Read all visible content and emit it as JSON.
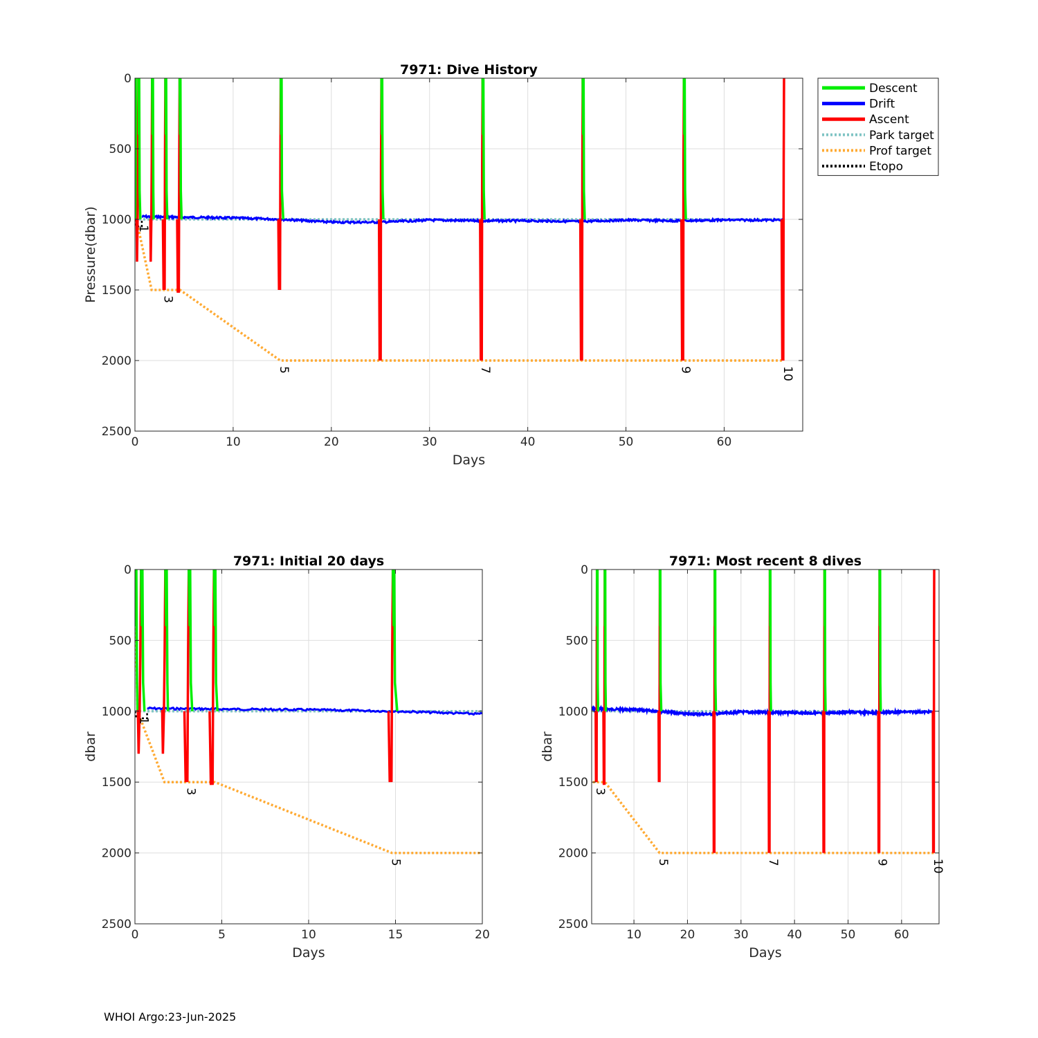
{
  "footer": "WHOI Argo:23-Jun-2025",
  "legend": [
    {
      "label": "Descent",
      "color": "#00ee00",
      "style": "solid"
    },
    {
      "label": "Drift",
      "color": "#0000ff",
      "style": "solid"
    },
    {
      "label": "Ascent",
      "color": "#ff0000",
      "style": "solid"
    },
    {
      "label": "Park target",
      "color": "#7fc4c4",
      "style": "dotted"
    },
    {
      "label": "Prof target",
      "color": "#ffaa33",
      "style": "dotted"
    },
    {
      "label": "Etopo",
      "color": "#000000",
      "style": "dotted"
    }
  ],
  "chart_data": [
    {
      "type": "line",
      "title": "7971: Dive History",
      "xlabel": "Days",
      "ylabel": "Pressure(dbar)",
      "xlim": [
        0,
        68
      ],
      "ylim": [
        0,
        2500
      ],
      "y_reversed": true,
      "grid": true,
      "xticks": [
        0,
        10,
        20,
        30,
        40,
        50,
        60
      ],
      "yticks": [
        0,
        500,
        1000,
        1500,
        2000,
        2500
      ],
      "legend_position": "outside-right",
      "cycle_labels": [
        {
          "label": "1",
          "x": 0.5,
          "y": 1040
        },
        {
          "label": "3",
          "x": 3.0,
          "y": 1540
        },
        {
          "label": "5",
          "x": 14.8,
          "y": 2040
        },
        {
          "label": "7",
          "x": 35.3,
          "y": 2040
        },
        {
          "label": "9",
          "x": 55.7,
          "y": 2040
        },
        {
          "label": "10",
          "x": 66.1,
          "y": 2040
        }
      ]
    },
    {
      "type": "line",
      "title": "7971: Initial 20 days",
      "xlabel": "Days",
      "ylabel": "dbar",
      "xlim": [
        0,
        20
      ],
      "ylim": [
        0,
        2500
      ],
      "y_reversed": true,
      "grid": true,
      "xticks": [
        0,
        5,
        10,
        15,
        20
      ],
      "yticks": [
        0,
        500,
        1000,
        1500,
        2000,
        2500
      ],
      "cycle_labels": [
        {
          "label": "1",
          "x": 0.3,
          "y": 1040
        },
        {
          "label": "3",
          "x": 3.0,
          "y": 1540
        },
        {
          "label": "5",
          "x": 14.8,
          "y": 2040
        }
      ]
    },
    {
      "type": "line",
      "title": "7971: Most recent 8 dives",
      "xlabel": "Days",
      "ylabel": "dbar",
      "xlim": [
        2.1,
        67
      ],
      "ylim": [
        0,
        2500
      ],
      "y_reversed": true,
      "grid": true,
      "xticks": [
        10,
        20,
        30,
        40,
        50,
        60
      ],
      "yticks": [
        0,
        500,
        1000,
        1500,
        2000,
        2500
      ],
      "cycle_labels": [
        {
          "label": "3",
          "x": 3.0,
          "y": 1540
        },
        {
          "label": "5",
          "x": 14.8,
          "y": 2040
        },
        {
          "label": "7",
          "x": 35.3,
          "y": 2040
        },
        {
          "label": "9",
          "x": 55.7,
          "y": 2040
        },
        {
          "label": "10",
          "x": 66.1,
          "y": 2040
        }
      ]
    }
  ],
  "series_data": {
    "prof_target": [
      [
        0,
        150
      ],
      [
        0.15,
        1000
      ],
      [
        1.7,
        1500
      ],
      [
        4.6,
        1500
      ],
      [
        14.8,
        2000
      ],
      [
        66.1,
        2000
      ]
    ],
    "park_target": [
      [
        0,
        1000
      ],
      [
        66.1,
        1000
      ]
    ],
    "etopo": [
      [
        0,
        1000
      ],
      [
        0.1,
        1050
      ],
      [
        0.7,
        1050
      ],
      [
        0.7,
        1000
      ]
    ],
    "cycles": [
      {
        "t_start": 0.0,
        "t_bottom": 0.15,
        "profile_depth": 1000,
        "t_surface": 0.35
      },
      {
        "t_start": 0.35,
        "t_bottom": 0.55,
        "profile_depth": 1000,
        "t_surface": 1.75
      },
      {
        "t_start": 1.75,
        "t_bottom": 1.9,
        "profile_depth": 1500,
        "t_surface": 3.1
      },
      {
        "t_start": 3.1,
        "t_bottom": 3.3,
        "profile_depth": 1520,
        "t_surface": 4.55
      },
      {
        "t_start": 4.55,
        "t_bottom": 4.75,
        "profile_depth": 1500,
        "t_surface": 14.85
      },
      {
        "t_start": 14.85,
        "t_bottom": 15.1,
        "profile_depth": 2000,
        "t_surface": 25.1
      },
      {
        "t_start": 25.1,
        "t_bottom": 25.3,
        "profile_depth": 2000,
        "t_surface": 35.4
      },
      {
        "t_start": 35.4,
        "t_bottom": 35.6,
        "profile_depth": 2000,
        "t_surface": 45.6
      },
      {
        "t_start": 45.6,
        "t_bottom": 45.8,
        "profile_depth": 2000,
        "t_surface": 55.9
      },
      {
        "t_start": 55.9,
        "t_bottom": 56.1,
        "profile_depth": 2000,
        "t_surface": 66.1
      }
    ],
    "drift": [
      [
        0.7,
        980
      ],
      [
        5,
        985
      ],
      [
        10,
        990
      ],
      [
        15,
        1000
      ],
      [
        20,
        1020
      ],
      [
        25,
        1020
      ],
      [
        30,
        1005
      ],
      [
        35,
        1010
      ],
      [
        40,
        1010
      ],
      [
        45,
        1015
      ],
      [
        50,
        1005
      ],
      [
        55,
        1010
      ],
      [
        60,
        1005
      ],
      [
        66,
        1005
      ]
    ]
  }
}
